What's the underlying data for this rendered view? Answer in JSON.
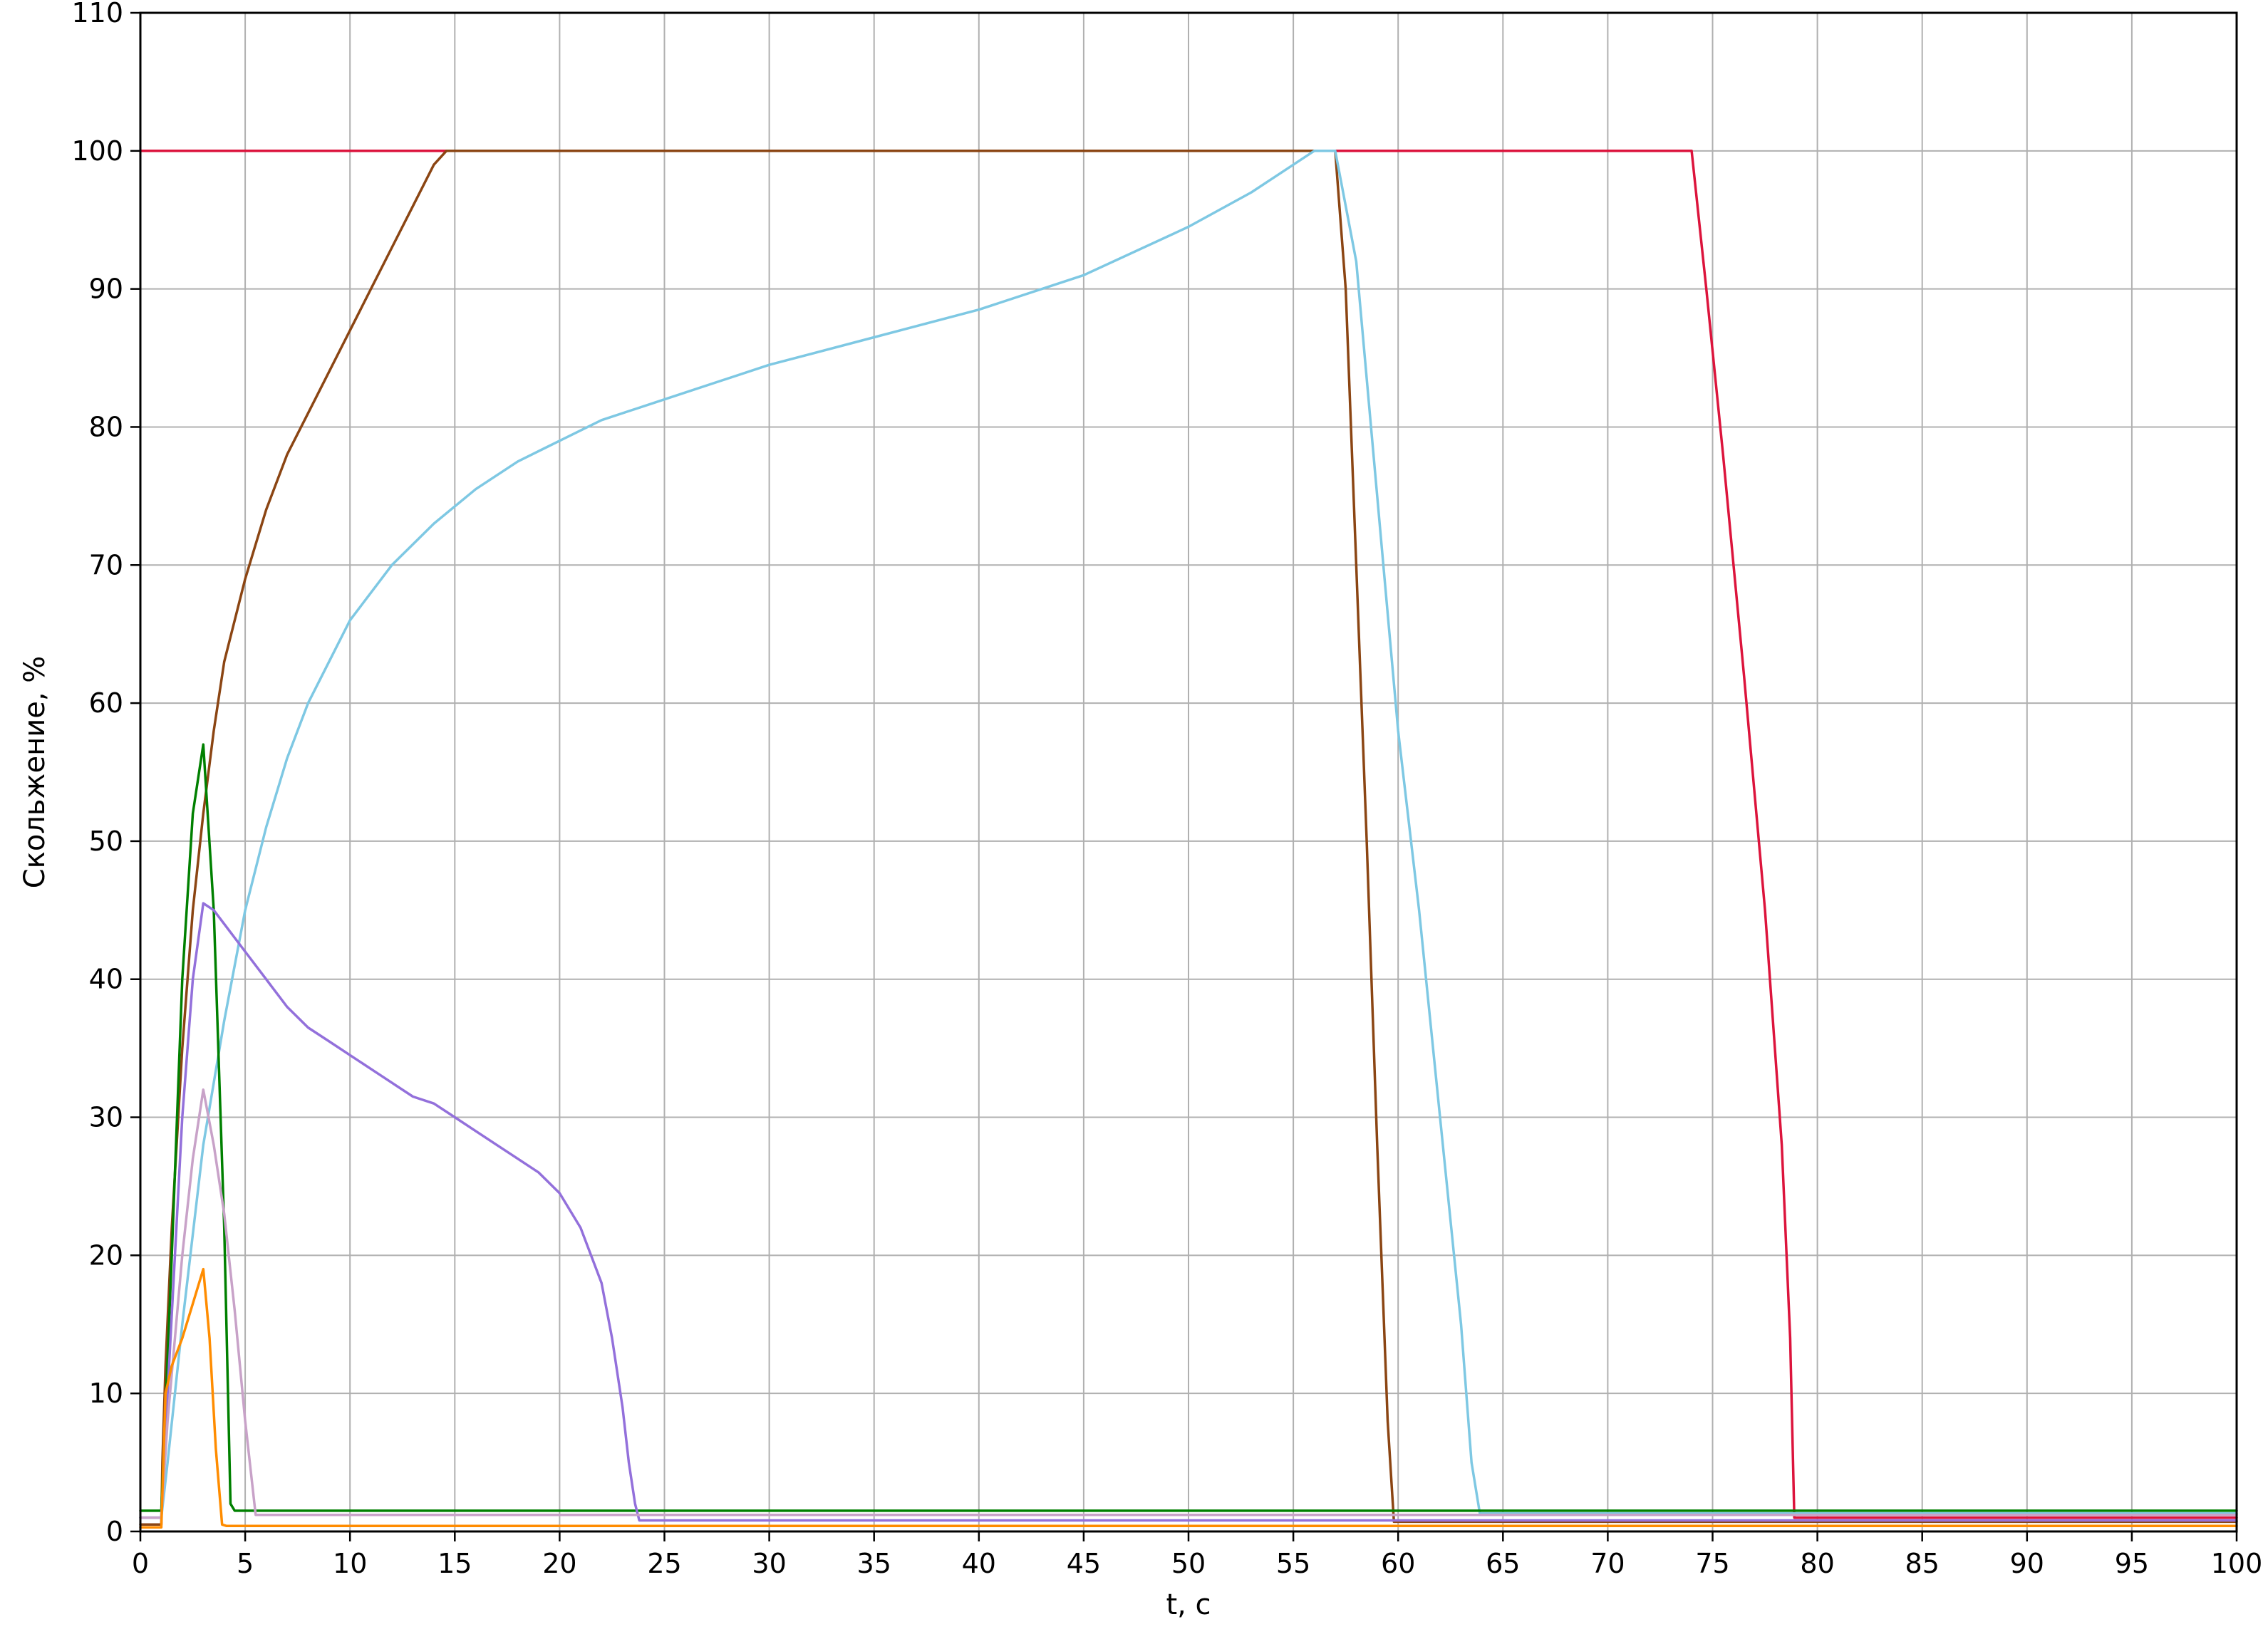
{
  "chart_data": {
    "type": "line",
    "title": "",
    "xlabel": "t, c",
    "ylabel": "Скольжение, %",
    "xlim": [
      0,
      100
    ],
    "ylim": [
      0,
      110
    ],
    "xticks": [
      0,
      5,
      10,
      15,
      20,
      25,
      30,
      35,
      40,
      45,
      50,
      55,
      60,
      65,
      70,
      75,
      80,
      85,
      90,
      95,
      100
    ],
    "yticks": [
      0,
      10,
      20,
      30,
      40,
      50,
      60,
      70,
      80,
      90,
      100,
      110
    ],
    "grid": true,
    "legend": "none",
    "series": [
      {
        "color": "#dc143c",
        "x": [
          0,
          74,
          74.7,
          75.5,
          76.5,
          77.5,
          78.3,
          78.7,
          78.9,
          100
        ],
        "y": [
          100,
          100,
          90,
          78,
          62,
          45,
          28,
          14,
          1,
          1
        ]
      },
      {
        "color": "#8b4513",
        "x": [
          0,
          1,
          1.05,
          1.2,
          1.5,
          2,
          2.5,
          3,
          3.5,
          4,
          4.5,
          5,
          6,
          7,
          8,
          9,
          10,
          11,
          12,
          13,
          14,
          14.6,
          57,
          57.5,
          58,
          58.5,
          59,
          59.5,
          59.8,
          100
        ],
        "y": [
          0.5,
          0.5,
          5,
          12,
          22,
          35,
          45,
          52,
          58,
          63,
          66,
          69,
          74,
          78,
          81,
          84,
          87,
          90,
          93,
          96,
          99,
          100,
          100,
          90,
          70,
          50,
          28,
          8,
          0.7,
          0.7
        ]
      },
      {
        "color": "#7ec8e3",
        "x": [
          0,
          1,
          1.3,
          2,
          3,
          4,
          5,
          6,
          7,
          8,
          9,
          10,
          12,
          14,
          16,
          18,
          20,
          22,
          25,
          30,
          35,
          40,
          45,
          50,
          53,
          56,
          57,
          58,
          59,
          60,
          61,
          62,
          63,
          63.5,
          63.9,
          100
        ],
        "y": [
          1,
          1,
          5,
          15,
          28,
          37,
          45,
          51,
          56,
          60,
          63,
          66,
          70,
          73,
          75.5,
          77.5,
          79,
          80.5,
          82,
          84.5,
          86.5,
          88.5,
          91,
          94.5,
          97,
          100,
          100,
          92,
          75,
          58,
          45,
          30,
          15,
          5,
          1.3,
          1.3
        ]
      },
      {
        "color": "#008000",
        "x": [
          0,
          1,
          1.5,
          2,
          2.5,
          3,
          3.5,
          4,
          4.3,
          4.5,
          100
        ],
        "y": [
          1.5,
          1.5,
          20,
          40,
          52,
          57,
          45,
          22,
          2,
          1.5,
          1.5
        ]
      },
      {
        "color": "#9370db",
        "x": [
          0,
          1,
          1.3,
          2,
          2.5,
          3,
          3.5,
          4,
          5,
          6,
          7,
          8,
          9,
          10,
          11,
          12,
          13,
          14,
          15,
          16,
          17,
          18,
          19,
          20,
          21,
          22,
          22.5,
          23,
          23.3,
          23.6,
          23.8,
          100
        ],
        "y": [
          1,
          1,
          10,
          30,
          40,
          45.5,
          45,
          44,
          42,
          40,
          38,
          36.5,
          35.5,
          34.5,
          33.5,
          32.5,
          31.5,
          31,
          30,
          29,
          28,
          27,
          26,
          24.5,
          22,
          18,
          14,
          9,
          5,
          2,
          0.8,
          0.8
        ]
      },
      {
        "color": "#c8a2c8",
        "x": [
          0,
          1,
          1.3,
          2,
          2.5,
          3,
          3.5,
          4,
          4.5,
          5,
          5.5,
          100
        ],
        "y": [
          1,
          1,
          8,
          20,
          27,
          32,
          28,
          23,
          16,
          8,
          1.2,
          1.2
        ]
      },
      {
        "color": "#ff8c00",
        "x": [
          0,
          1,
          1.2,
          1.5,
          2,
          2.5,
          3,
          3.3,
          3.6,
          3.9,
          4.1,
          100
        ],
        "y": [
          0.3,
          0.3,
          10,
          12,
          14,
          16.5,
          19,
          14,
          6,
          0.5,
          0.4,
          0.4
        ]
      }
    ]
  }
}
